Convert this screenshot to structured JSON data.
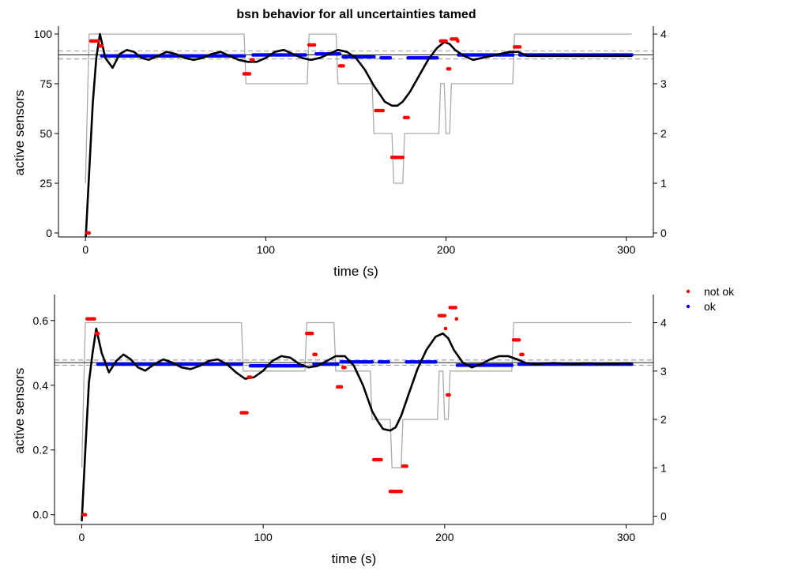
{
  "title": "bsn behavior for all uncertainties tamed",
  "legend": {
    "placement": "right",
    "items": [
      {
        "label": "not ok",
        "color": "#ff0000"
      },
      {
        "label": "ok",
        "color": "#0000ff"
      }
    ]
  },
  "colors": {
    "smooth": "#000000",
    "step": "#aaaaaa",
    "reference": "#aaaaaa",
    "not_ok": "#ff0000",
    "ok": "#0000ff"
  },
  "chart_data": [
    {
      "type": "line",
      "xlabel": "time (s)",
      "ylabel": "active sensors",
      "xlim": [
        -15,
        315
      ],
      "ylim": [
        -2,
        104
      ],
      "xticks": [
        0,
        100,
        200,
        300
      ],
      "yticks": [
        0,
        25,
        50,
        75,
        100
      ],
      "yticks_right": [
        0,
        1,
        2,
        3,
        4
      ],
      "ylim_right": [
        -0.08,
        4.16
      ],
      "grid": false,
      "reference_lines": {
        "solid": 89.5,
        "dashed": [
          91.5,
          87.5
        ]
      },
      "step_series": {
        "x": [
          0,
          2,
          88,
          89,
          123,
          124,
          139,
          140,
          159,
          160,
          170,
          171,
          176,
          177,
          196,
          197,
          199,
          200,
          202,
          203,
          237,
          238,
          303
        ],
        "y": [
          1,
          4,
          4,
          3,
          3,
          4,
          4,
          3,
          3,
          2,
          2,
          1,
          1,
          2,
          2,
          3,
          3,
          2,
          2,
          3,
          3,
          4,
          4
        ]
      },
      "smooth_series": {
        "x": [
          0,
          2,
          4,
          6,
          8,
          11,
          15,
          19,
          23,
          27,
          31,
          35,
          40,
          45,
          50,
          55,
          60,
          65,
          70,
          75,
          80,
          85,
          90,
          95,
          100,
          105,
          110,
          115,
          120,
          125,
          130,
          135,
          140,
          145,
          150,
          155,
          160,
          163,
          166,
          170,
          173,
          176,
          180,
          185,
          190,
          195,
          199,
          202,
          205,
          210,
          215,
          220,
          225,
          230,
          235,
          240,
          245,
          250,
          255,
          260,
          265,
          270,
          275,
          280,
          285,
          290,
          295,
          300,
          303
        ],
        "y": [
          -5,
          30,
          65,
          88,
          100,
          88,
          83,
          90,
          92,
          91,
          88,
          87,
          89,
          91,
          90,
          88,
          87,
          88,
          90,
          91,
          89,
          87,
          86,
          86,
          88,
          91,
          92,
          90,
          88,
          87,
          88,
          90,
          92,
          91,
          88,
          82,
          74,
          70,
          66,
          64,
          64,
          66,
          71,
          79,
          87,
          93,
          96,
          95,
          92,
          89,
          87,
          88,
          89,
          90,
          91,
          91,
          89,
          89,
          89,
          89,
          89,
          89,
          89,
          89,
          89,
          89,
          89,
          89,
          89
        ]
      },
      "not_ok": [
        {
          "x": [
            1,
            2.5
          ],
          "y": 0
        },
        {
          "x": [
            3,
            7
          ],
          "y": 96.5
        },
        {
          "x": [
            8,
            9
          ],
          "y": 94
        },
        {
          "x": [
            88,
            91
          ],
          "y": 80
        },
        {
          "x": [
            92,
            93
          ],
          "y": 87
        },
        {
          "x": [
            124,
            127
          ],
          "y": 94.5
        },
        {
          "x": [
            141,
            143
          ],
          "y": 84
        },
        {
          "x": [
            161,
            165
          ],
          "y": 61.5
        },
        {
          "x": [
            170,
            176
          ],
          "y": 38
        },
        {
          "x": [
            177,
            179
          ],
          "y": 58
        },
        {
          "x": [
            197,
            200
          ],
          "y": 96.5
        },
        {
          "x": [
            201,
            202
          ],
          "y": 82.5
        },
        {
          "x": [
            203,
            206
          ],
          "y": 97.5
        },
        {
          "x": [
            206.5,
            207
          ],
          "y": 96.5
        },
        {
          "x": [
            238,
            241
          ],
          "y": 93.5
        }
      ],
      "ok": [
        {
          "x": [
            9,
            88
          ],
          "y": 89
        },
        {
          "x": [
            93,
            122
          ],
          "y": 89.5
        },
        {
          "x": [
            128,
            141
          ],
          "y": 90
        },
        {
          "x": [
            143,
            160
          ],
          "y": 88.5
        },
        {
          "x": [
            164,
            169
          ],
          "y": 88
        },
        {
          "x": [
            179,
            195
          ],
          "y": 88
        },
        {
          "x": [
            207,
            237
          ],
          "y": 89.5
        },
        {
          "x": [
            241,
            303
          ],
          "y": 89.5
        }
      ]
    },
    {
      "type": "line",
      "xlabel": "time (s)",
      "ylabel": "active sensors",
      "xlim": [
        -15,
        315
      ],
      "ylim": [
        -0.03,
        0.68
      ],
      "xticks": [
        0,
        100,
        200,
        300
      ],
      "yticks": [
        0.0,
        0.2,
        0.4,
        0.6
      ],
      "yticks_right": [
        0,
        1,
        2,
        3,
        4
      ],
      "ylim_right": [
        -0.17,
        4.58
      ],
      "grid": false,
      "reference_lines": {
        "solid": 0.47,
        "dashed": [
          0.478,
          0.462
        ]
      },
      "step_series": {
        "x": [
          0,
          2,
          88,
          89,
          123,
          124,
          139,
          140,
          159,
          160,
          170,
          171,
          176,
          177,
          196,
          197,
          199,
          200,
          202,
          203,
          237,
          238,
          303
        ],
        "y": [
          1,
          4,
          4,
          3,
          3,
          4,
          4,
          3,
          3,
          2,
          2,
          1,
          1,
          2,
          2,
          3,
          3,
          2,
          2,
          3,
          3,
          4,
          4
        ]
      },
      "smooth_series": {
        "x": [
          0,
          2,
          4,
          6,
          8,
          11,
          15,
          19,
          23,
          27,
          31,
          35,
          40,
          45,
          50,
          55,
          60,
          65,
          70,
          75,
          80,
          85,
          90,
          95,
          100,
          105,
          110,
          115,
          120,
          125,
          130,
          135,
          140,
          145,
          150,
          155,
          160,
          163,
          166,
          170,
          173,
          176,
          180,
          185,
          190,
          195,
          199,
          202,
          205,
          210,
          215,
          220,
          225,
          230,
          235,
          240,
          245,
          250,
          255,
          260,
          265,
          270,
          275,
          280,
          285,
          290,
          295,
          300,
          303
        ],
        "y": [
          -0.02,
          0.2,
          0.41,
          0.5,
          0.575,
          0.5,
          0.44,
          0.475,
          0.495,
          0.48,
          0.455,
          0.445,
          0.465,
          0.48,
          0.47,
          0.455,
          0.45,
          0.46,
          0.475,
          0.48,
          0.465,
          0.44,
          0.42,
          0.425,
          0.445,
          0.475,
          0.49,
          0.485,
          0.465,
          0.455,
          0.46,
          0.475,
          0.49,
          0.49,
          0.46,
          0.4,
          0.32,
          0.29,
          0.265,
          0.26,
          0.27,
          0.305,
          0.37,
          0.45,
          0.51,
          0.55,
          0.56,
          0.545,
          0.51,
          0.47,
          0.455,
          0.465,
          0.48,
          0.49,
          0.49,
          0.48,
          0.468,
          0.465,
          0.467,
          0.469,
          0.467,
          0.466,
          0.467,
          0.468,
          0.466,
          0.467,
          0.467,
          0.468,
          0.467
        ]
      },
      "not_ok": [
        {
          "x": [
            1,
            2.5
          ],
          "y": 0.0
        },
        {
          "x": [
            3,
            7
          ],
          "y": 0.605
        },
        {
          "x": [
            8,
            9
          ],
          "y": 0.56
        },
        {
          "x": [
            88,
            91
          ],
          "y": 0.315
        },
        {
          "x": [
            92,
            93
          ],
          "y": 0.425
        },
        {
          "x": [
            124,
            127
          ],
          "y": 0.56
        },
        {
          "x": [
            128,
            129
          ],
          "y": 0.495
        },
        {
          "x": [
            141,
            143
          ],
          "y": 0.395
        },
        {
          "x": [
            144,
            145
          ],
          "y": 0.455
        },
        {
          "x": [
            161,
            165
          ],
          "y": 0.17
        },
        {
          "x": [
            170,
            176
          ],
          "y": 0.072
        },
        {
          "x": [
            177,
            179
          ],
          "y": 0.15
        },
        {
          "x": [
            197,
            200
          ],
          "y": 0.615
        },
        {
          "x": [
            200.5,
            201
          ],
          "y": 0.575
        },
        {
          "x": [
            201.5,
            203
          ],
          "y": 0.37
        },
        {
          "x": [
            203,
            206
          ],
          "y": 0.64
        },
        {
          "x": [
            206.5,
            207
          ],
          "y": 0.605
        },
        {
          "x": [
            238,
            241
          ],
          "y": 0.54
        },
        {
          "x": [
            242,
            243
          ],
          "y": 0.495
        }
      ],
      "ok": [
        {
          "x": [
            9,
            88
          ],
          "y": 0.465
        },
        {
          "x": [
            93,
            122
          ],
          "y": 0.46
        },
        {
          "x": [
            128,
            141
          ],
          "y": 0.465
        },
        {
          "x": [
            143,
            160
          ],
          "y": 0.472
        },
        {
          "x": [
            164,
            169
          ],
          "y": 0.472
        },
        {
          "x": [
            179,
            195
          ],
          "y": 0.472
        },
        {
          "x": [
            207,
            237
          ],
          "y": 0.462
        },
        {
          "x": [
            241,
            303
          ],
          "y": 0.465
        }
      ]
    }
  ]
}
